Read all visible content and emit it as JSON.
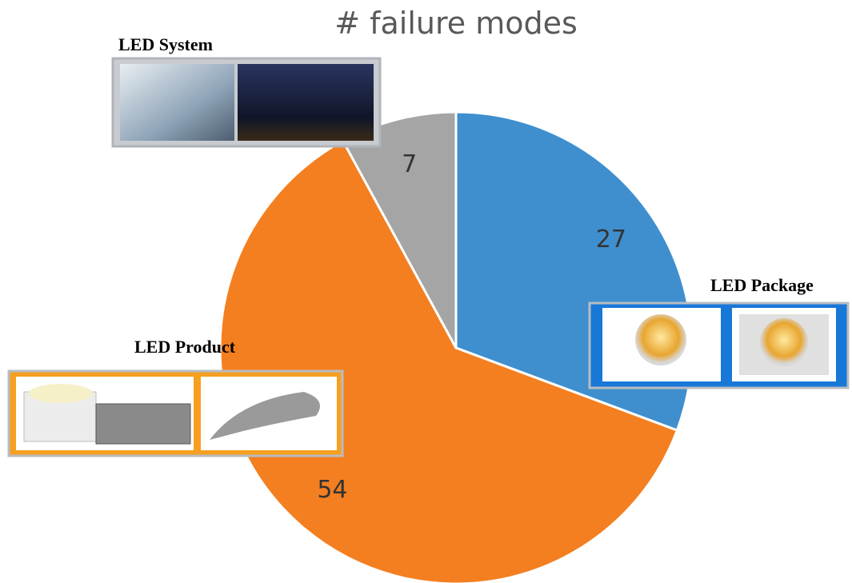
{
  "chart_data": {
    "type": "pie",
    "title": "# failure modes",
    "categories": [
      "LED Package",
      "LED Product",
      "LED System"
    ],
    "values": [
      27,
      54,
      7
    ],
    "colors": [
      "#3f8fcf",
      "#f47f20",
      "#a5a5a5"
    ]
  }
}
